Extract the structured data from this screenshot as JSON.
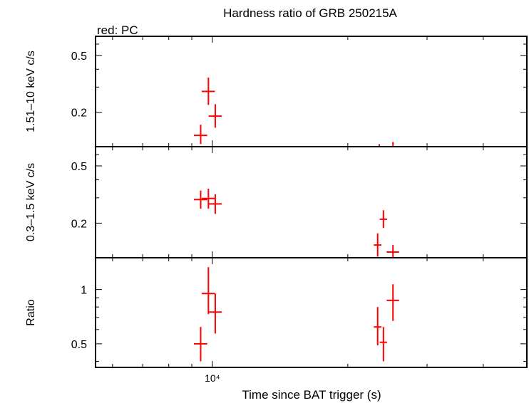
{
  "chart_data": {
    "type": "scatter",
    "title": "Hardness ratio of GRB 250215A",
    "subtitle": "red: PC",
    "xlabel": "Time since BAT trigger (s)",
    "x_scale": "log",
    "xlim": [
      5500,
      50000
    ],
    "x_ticks": [
      {
        "value": 10000,
        "label": "10⁴"
      }
    ],
    "series_color": "#ff0000",
    "panels": [
      {
        "id": "hard",
        "ylabel": "1.51–10 keV c/s",
        "y_scale": "log",
        "ylim": [
          0.115,
          0.68
        ],
        "y_ticks": [
          {
            "value": 0.2,
            "label": "0.2"
          },
          {
            "value": 0.5,
            "label": "0.5"
          }
        ],
        "points": [
          {
            "x": 9420,
            "xerr_lo": 320,
            "xerr_hi": 320,
            "y": 0.138,
            "yerr_lo": 0.018,
            "yerr_hi": 0.026
          },
          {
            "x": 9800,
            "xerr_lo": 330,
            "xerr_hi": 330,
            "y": 0.28,
            "yerr_lo": 0.055,
            "yerr_hi": 0.07
          },
          {
            "x": 10150,
            "xerr_lo": 340,
            "xerr_hi": 340,
            "y": 0.188,
            "yerr_lo": 0.032,
            "yerr_hi": 0.04
          },
          {
            "x": 23500,
            "xerr_lo": 0,
            "xerr_hi": 0,
            "y": 0.112,
            "yerr_lo": 0.0,
            "yerr_hi": 0.008
          },
          {
            "x": 25200,
            "xerr_lo": 0,
            "xerr_hi": 0,
            "y": 0.112,
            "yerr_lo": 0.0,
            "yerr_hi": 0.012
          }
        ]
      },
      {
        "id": "soft",
        "ylabel": "0.3–1.5 keV c/s",
        "y_scale": "log",
        "ylim": [
          0.115,
          0.68
        ],
        "y_ticks": [
          {
            "value": 0.2,
            "label": "0.2"
          },
          {
            "value": 0.5,
            "label": "0.5"
          }
        ],
        "points": [
          {
            "x": 9420,
            "xerr_lo": 320,
            "xerr_hi": 320,
            "y": 0.292,
            "yerr_lo": 0.04,
            "yerr_hi": 0.045
          },
          {
            "x": 9800,
            "xerr_lo": 330,
            "xerr_hi": 330,
            "y": 0.297,
            "yerr_lo": 0.045,
            "yerr_hi": 0.05
          },
          {
            "x": 10150,
            "xerr_lo": 340,
            "xerr_hi": 340,
            "y": 0.272,
            "yerr_lo": 0.04,
            "yerr_hi": 0.045
          },
          {
            "x": 23300,
            "xerr_lo": 450,
            "xerr_hi": 450,
            "y": 0.141,
            "yerr_lo": 0.024,
            "yerr_hi": 0.029
          },
          {
            "x": 24000,
            "xerr_lo": 450,
            "xerr_hi": 450,
            "y": 0.213,
            "yerr_lo": 0.028,
            "yerr_hi": 0.033
          },
          {
            "x": 25200,
            "xerr_lo": 800,
            "xerr_hi": 800,
            "y": 0.126,
            "yerr_lo": 0.012,
            "yerr_hi": 0.015
          }
        ]
      },
      {
        "id": "ratio",
        "ylabel": "Ratio",
        "y_scale": "log",
        "ylim": [
          0.37,
          1.5
        ],
        "y_ticks": [
          {
            "value": 0.5,
            "label": "0.5"
          },
          {
            "value": 1,
            "label": "1"
          }
        ],
        "points": [
          {
            "x": 9420,
            "xerr_lo": 320,
            "xerr_hi": 320,
            "y": 0.5,
            "yerr_lo": 0.1,
            "yerr_hi": 0.12
          },
          {
            "x": 9800,
            "xerr_lo": 330,
            "xerr_hi": 330,
            "y": 0.95,
            "yerr_lo": 0.22,
            "yerr_hi": 0.38
          },
          {
            "x": 10150,
            "xerr_lo": 340,
            "xerr_hi": 340,
            "y": 0.75,
            "yerr_lo": 0.18,
            "yerr_hi": 0.2
          },
          {
            "x": 23300,
            "xerr_lo": 450,
            "xerr_hi": 450,
            "y": 0.62,
            "yerr_lo": 0.13,
            "yerr_hi": 0.18
          },
          {
            "x": 24000,
            "xerr_lo": 450,
            "xerr_hi": 450,
            "y": 0.51,
            "yerr_lo": 0.11,
            "yerr_hi": 0.11
          },
          {
            "x": 25200,
            "xerr_lo": 800,
            "xerr_hi": 800,
            "y": 0.87,
            "yerr_lo": 0.2,
            "yerr_hi": 0.2
          }
        ]
      }
    ]
  }
}
